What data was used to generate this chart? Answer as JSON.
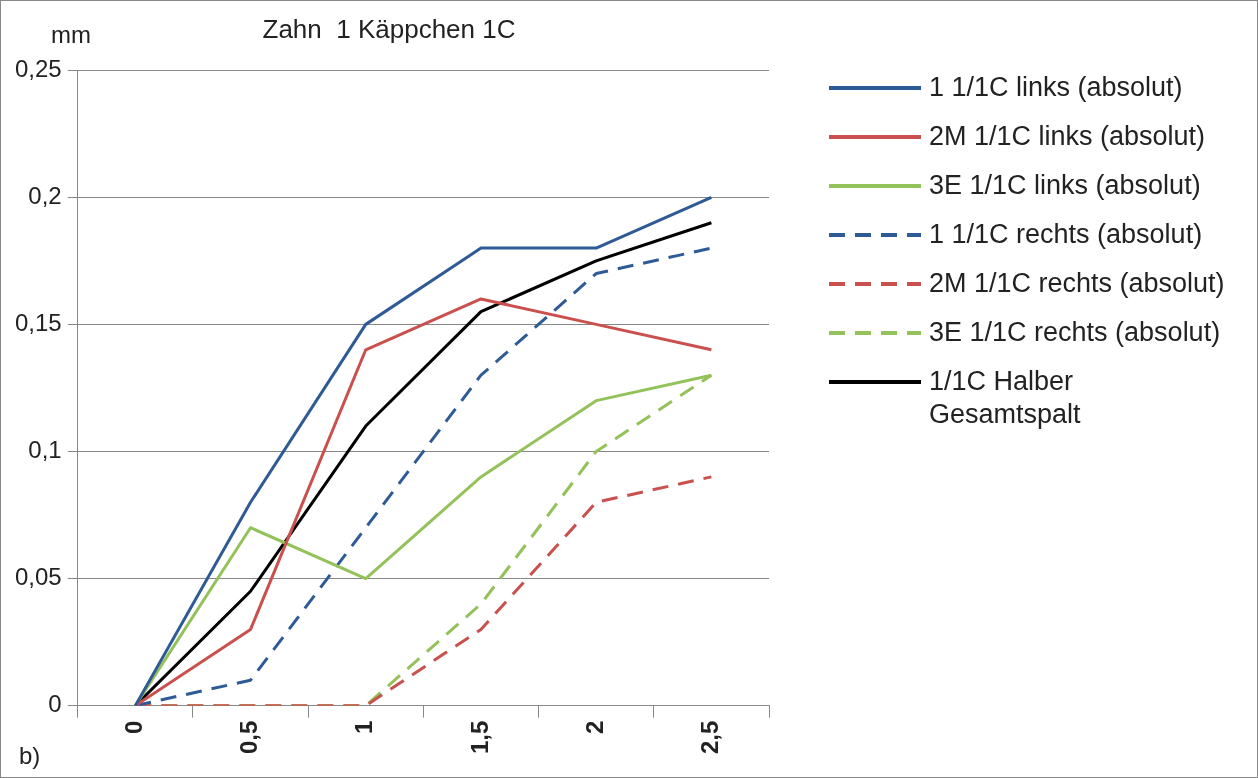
{
  "chart_data": {
    "type": "line",
    "title": "Zahn  1 Käppchen 1C",
    "ylabel": "mm",
    "annotations": [
      "b)"
    ],
    "categories": [
      "0",
      "0,5",
      "1",
      "1,5",
      "2",
      "2,5"
    ],
    "ylim": [
      0,
      0.25
    ],
    "yticks": [
      {
        "value": 0,
        "label": "0"
      },
      {
        "value": 0.05,
        "label": "0,05"
      },
      {
        "value": 0.1,
        "label": "0,1"
      },
      {
        "value": 0.15,
        "label": "0,15"
      },
      {
        "value": 0.2,
        "label": "0,2"
      },
      {
        "value": 0.25,
        "label": "0,25"
      }
    ],
    "grid": "y",
    "legend": "right",
    "marker": "none",
    "series": [
      {
        "name": "1 1/1C links (absolut)",
        "color": "#2e5a96",
        "line_style": "solid",
        "values": [
          0,
          0.08,
          0.15,
          0.18,
          0.18,
          0.2
        ]
      },
      {
        "name": "2M 1/1C links (absolut)",
        "color": "#c9504d",
        "line_style": "solid",
        "values": [
          0,
          0.03,
          0.14,
          0.16,
          0.15,
          0.14
        ]
      },
      {
        "name": "3E 1/1C links (absolut)",
        "color": "#94c25a",
        "line_style": "solid",
        "values": [
          0,
          0.07,
          0.05,
          0.09,
          0.12,
          0.13
        ]
      },
      {
        "name": "1 1/1C rechts (absolut)",
        "color": "#2e5a96",
        "line_style": "dashed",
        "values": [
          0,
          0.01,
          0.07,
          0.13,
          0.17,
          0.18
        ]
      },
      {
        "name": "2M 1/1C rechts (absolut)",
        "color": "#c9504d",
        "line_style": "dashed",
        "values": [
          0,
          0,
          0,
          0.03,
          0.08,
          0.09
        ]
      },
      {
        "name": "3E 1/1C rechts (absolut)",
        "color": "#94c25a",
        "line_style": "dashed",
        "values": [
          0,
          0,
          0,
          0.04,
          0.1,
          0.13
        ]
      },
      {
        "name": "1/1C Halber Gesamtspalt",
        "color": "#000000",
        "line_style": "solid",
        "values": [
          0,
          0.045,
          0.11,
          0.155,
          0.175,
          0.19
        ]
      }
    ]
  }
}
